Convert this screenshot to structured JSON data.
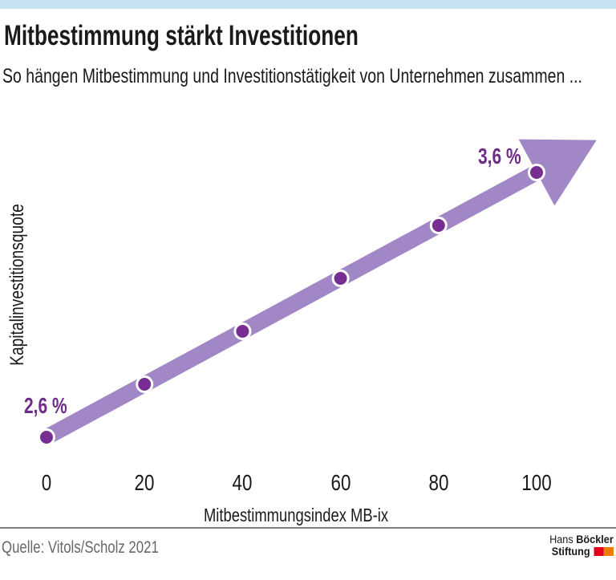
{
  "page": {
    "title": "Mitbestimmung stärkt Investitionen",
    "subtitle": "So hängen Mitbestimmung und Investitionstätigkeit von Unternehmen zusammen ..."
  },
  "chart_data": {
    "type": "line",
    "title": "Mitbestimmung stärkt Investitionen",
    "xlabel": "Mitbestimmungsindex MB-ix",
    "ylabel": "Kapitalinvestitionsquote",
    "x": [
      0,
      20,
      40,
      60,
      80,
      100
    ],
    "values": [
      2.6,
      2.8,
      3.0,
      3.2,
      3.4,
      3.6
    ],
    "x_ticks": [
      "0",
      "20",
      "40",
      "60",
      "80",
      "100"
    ],
    "xlim": [
      0,
      100
    ],
    "value_range": [
      2.6,
      3.6
    ],
    "unit": "%",
    "first_point_label": "2,6 %",
    "last_point_label": "3,6 %",
    "grid": false,
    "legend": false,
    "style": "thick arrow line with dot markers, arrowhead at upper right",
    "colors": {
      "line": "#a187c5",
      "dot": "#772d91",
      "dot_ring": "#ffffff",
      "point_label": "#6f2b8a"
    }
  },
  "footer": {
    "source": "Quelle: Vitols/Scholz 2021",
    "logo": {
      "line1_regular": "Hans",
      "line1_bold": "Böckler",
      "line2_bold": "Stiftung",
      "square_colors": [
        "#e2001a",
        "#ef7d00"
      ]
    }
  },
  "colors": {
    "accent_bar": "#c9e2f1",
    "text": "#1a1a1a",
    "footer_text": "#676767"
  }
}
